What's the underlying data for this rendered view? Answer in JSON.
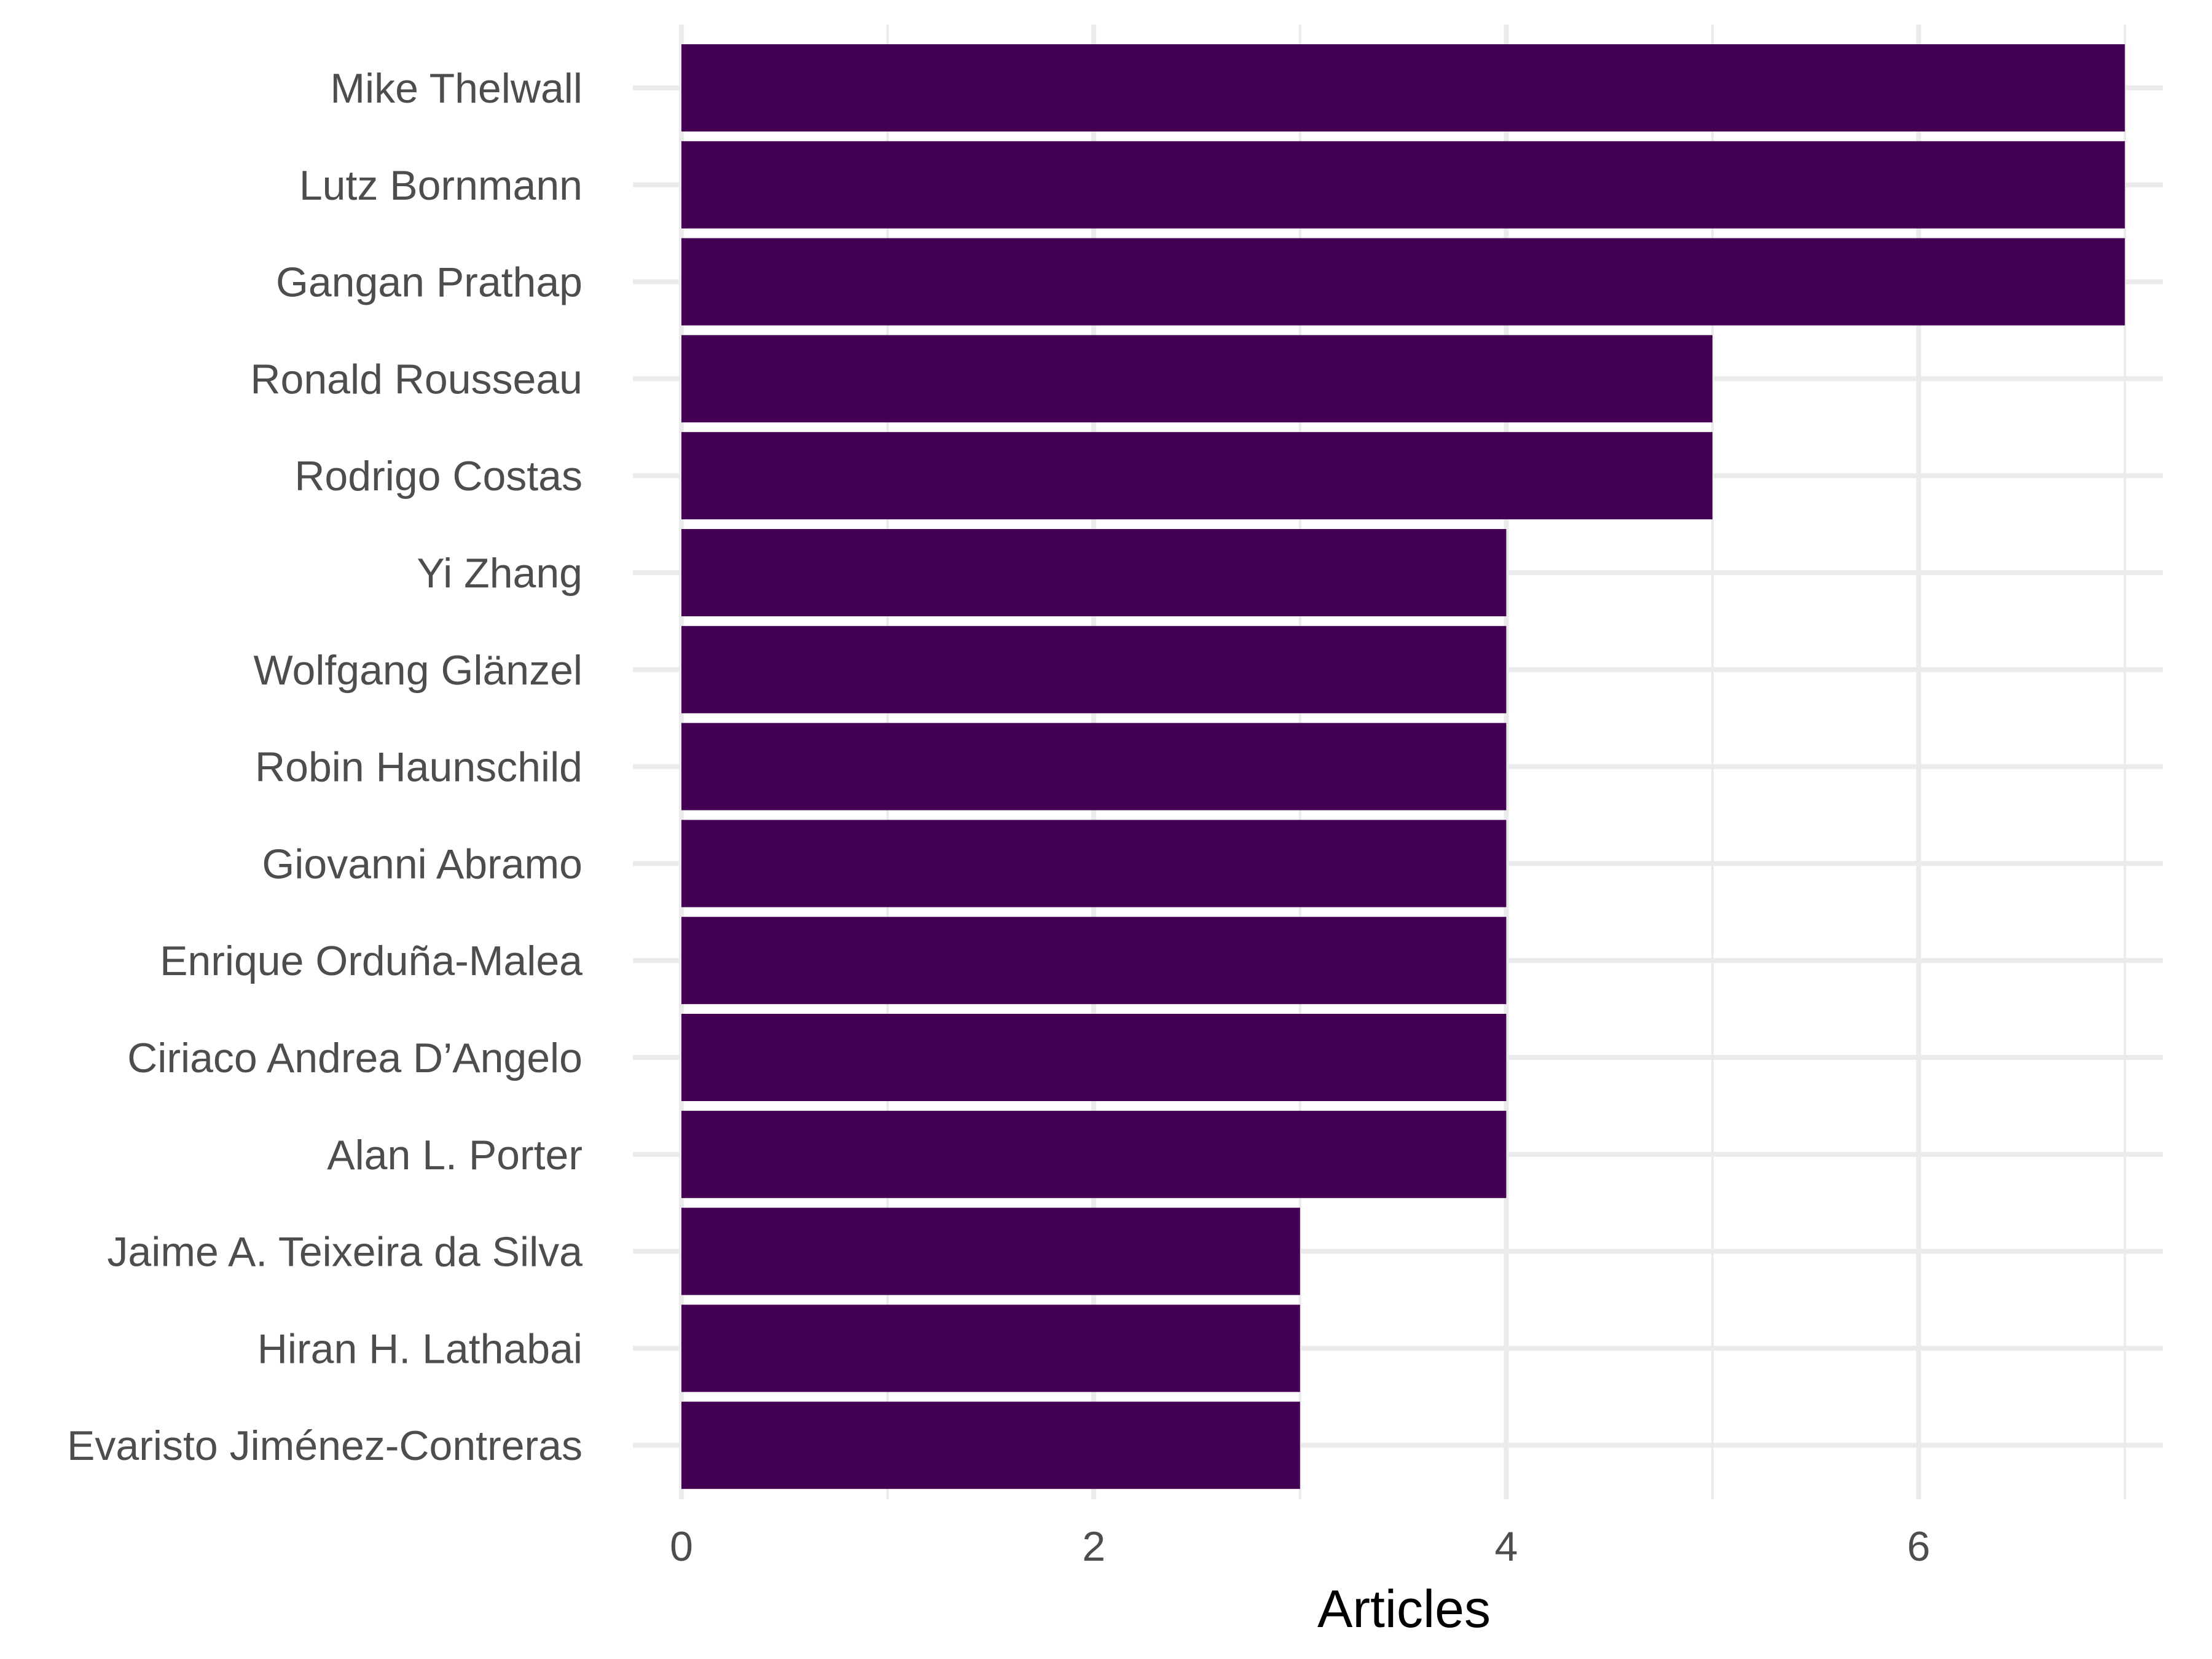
{
  "chart_data": {
    "type": "bar",
    "orientation": "horizontal",
    "categories": [
      "Mike Thelwall",
      "Lutz Bornmann",
      "Gangan Prathap",
      "Ronald Rousseau",
      "Rodrigo Costas",
      "Yi Zhang",
      "Wolfgang Glänzel",
      "Robin Haunschild",
      "Giovanni Abramo",
      "Enrique Orduña-Malea",
      "Ciriaco Andrea D’Angelo",
      "Alan L. Porter",
      "Jaime A. Teixeira da Silva",
      "Hiran H. Lathabai",
      "Evaristo Jiménez-Contreras"
    ],
    "values": [
      7,
      7,
      7,
      5,
      5,
      4,
      4,
      4,
      4,
      4,
      4,
      4,
      3,
      3,
      3
    ],
    "xlabel": "Articles",
    "ylabel": "",
    "title": "",
    "xlim": [
      0,
      7
    ],
    "xticks": [
      0,
      2,
      4,
      6
    ],
    "xtick_labels": [
      "0",
      "2",
      "4",
      "6"
    ],
    "grid": true,
    "legend": "none",
    "bar_color": "#440154"
  }
}
